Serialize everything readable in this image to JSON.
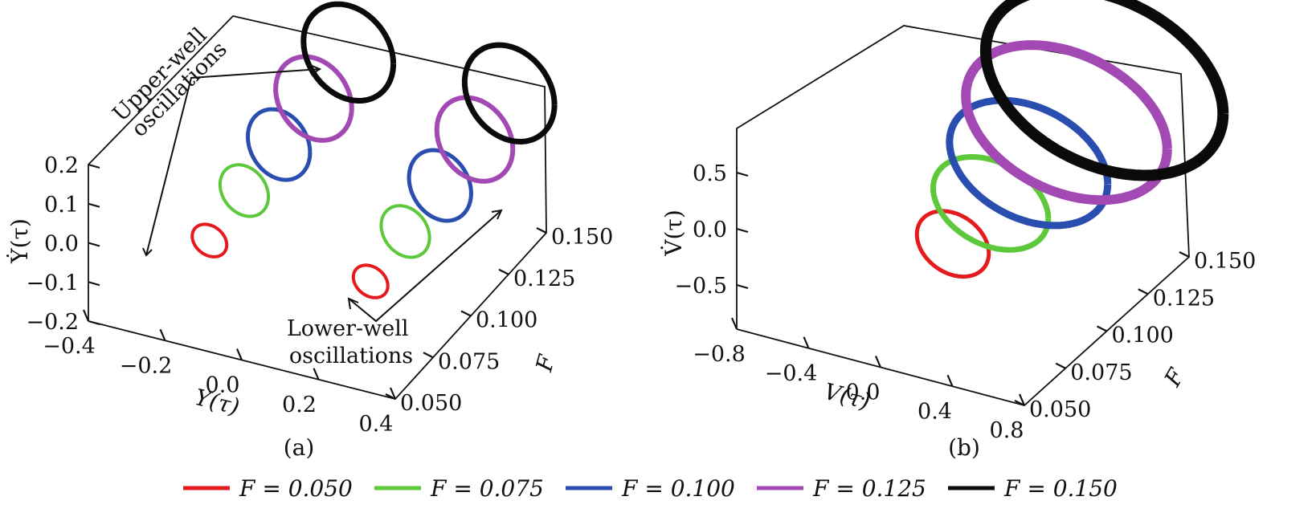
{
  "colors": {
    "F_0.050": "#e41a1c",
    "F_0.075": "#5cc83a",
    "F_0.100": "#2a4db0",
    "F_0.125": "#a249b4",
    "F_0.150": "#0a0a0a"
  },
  "legend": [
    {
      "label": "F = 0.050",
      "color_key": "F_0.050"
    },
    {
      "label": "F = 0.075",
      "color_key": "F_0.075"
    },
    {
      "label": "F = 0.100",
      "color_key": "F_0.100"
    },
    {
      "label": "F = 0.125",
      "color_key": "F_0.125"
    },
    {
      "label": "F = 0.150",
      "color_key": "F_0.150"
    }
  ],
  "chart_data": [
    {
      "type": "line",
      "panel": "(a)",
      "projection": "3d",
      "xlabel": "Y(τ)",
      "ylabel": "F",
      "zlabel": "Ẏ(τ)",
      "x_ticks": [
        "−0.4",
        "−0.2",
        "0.0",
        "0.2",
        "0.4"
      ],
      "y_ticks": [
        "0.050",
        "0.075",
        "0.100",
        "0.125",
        "0.150"
      ],
      "z_ticks": [
        "−0.2",
        "−0.1",
        "0.0",
        "0.1",
        "0.2"
      ],
      "xlim": [
        -0.4,
        0.4
      ],
      "ylim": [
        0.05,
        0.15
      ],
      "zlim": [
        -0.2,
        0.2
      ],
      "annotations": [
        "Upper-well oscillations",
        "Lower-well oscillations"
      ],
      "series": [
        {
          "F": 0.05,
          "color_key": "F_0.050",
          "orbits": [
            {
              "well": "upper",
              "center": [
                -0.21,
                -0.07
              ],
              "amplitude": [
                0.05,
                0.05
              ]
            },
            {
              "well": "lower",
              "center": [
                0.21,
                -0.07
              ],
              "amplitude": [
                0.05,
                0.05
              ]
            }
          ]
        },
        {
          "F": 0.075,
          "color_key": "F_0.075",
          "orbits": [
            {
              "well": "upper",
              "center": [
                -0.21,
                -0.04
              ],
              "amplitude": [
                0.07,
                0.08
              ]
            },
            {
              "well": "lower",
              "center": [
                0.21,
                -0.04
              ],
              "amplitude": [
                0.07,
                0.08
              ]
            }
          ]
        },
        {
          "F": 0.1,
          "color_key": "F_0.100",
          "orbits": [
            {
              "well": "upper",
              "center": [
                -0.21,
                -0.02
              ],
              "amplitude": [
                0.09,
                0.11
              ]
            },
            {
              "well": "lower",
              "center": [
                0.21,
                -0.02
              ],
              "amplitude": [
                0.09,
                0.11
              ]
            }
          ]
        },
        {
          "F": 0.125,
          "color_key": "F_0.125",
          "orbits": [
            {
              "well": "upper",
              "center": [
                -0.21,
                0.0
              ],
              "amplitude": [
                0.11,
                0.13
              ]
            },
            {
              "well": "lower",
              "center": [
                0.21,
                0.0
              ],
              "amplitude": [
                0.11,
                0.13
              ]
            }
          ]
        },
        {
          "F": 0.15,
          "color_key": "F_0.150",
          "orbits": [
            {
              "well": "upper",
              "center": [
                -0.21,
                0.02
              ],
              "amplitude": [
                0.13,
                0.15
              ]
            },
            {
              "well": "lower",
              "center": [
                0.21,
                0.02
              ],
              "amplitude": [
                0.13,
                0.15
              ]
            }
          ]
        }
      ]
    },
    {
      "type": "line",
      "panel": "(b)",
      "projection": "3d",
      "xlabel": "V(τ)",
      "ylabel": "F",
      "zlabel": "V̇(τ)",
      "x_ticks": [
        "−0.8",
        "−0.4",
        "0.0",
        "0.4",
        "0.8"
      ],
      "y_ticks": [
        "0.050",
        "0.075",
        "0.100",
        "0.125",
        "0.150"
      ],
      "z_ticks": [
        "−0.5",
        "0.0",
        "0.5"
      ],
      "xlim": [
        -0.8,
        0.8
      ],
      "ylim": [
        0.05,
        0.15
      ],
      "zlim": [
        -0.8,
        0.8
      ],
      "series": [
        {
          "F": 0.05,
          "color_key": "F_0.050",
          "orbits": [
            {
              "well": "cross-well",
              "center": [
                0.0,
                -0.2
              ],
              "amplitude": [
                0.2,
                0.25
              ]
            }
          ]
        },
        {
          "F": 0.075,
          "color_key": "F_0.075",
          "orbits": [
            {
              "well": "cross-well",
              "center": [
                0.0,
                -0.15
              ],
              "amplitude": [
                0.32,
                0.35
              ]
            }
          ]
        },
        {
          "F": 0.1,
          "color_key": "F_0.100",
          "orbits": [
            {
              "well": "cross-well",
              "center": [
                0.0,
                -0.1
              ],
              "amplitude": [
                0.44,
                0.47
              ]
            }
          ]
        },
        {
          "F": 0.125,
          "color_key": "F_0.125",
          "orbits": [
            {
              "well": "cross-well",
              "center": [
                0.0,
                -0.05
              ],
              "amplitude": [
                0.56,
                0.58
              ]
            }
          ]
        },
        {
          "F": 0.15,
          "color_key": "F_0.150",
          "orbits": [
            {
              "well": "cross-well",
              "center": [
                0.0,
                0.0
              ],
              "amplitude": [
                0.66,
                0.7
              ]
            }
          ]
        }
      ]
    }
  ]
}
